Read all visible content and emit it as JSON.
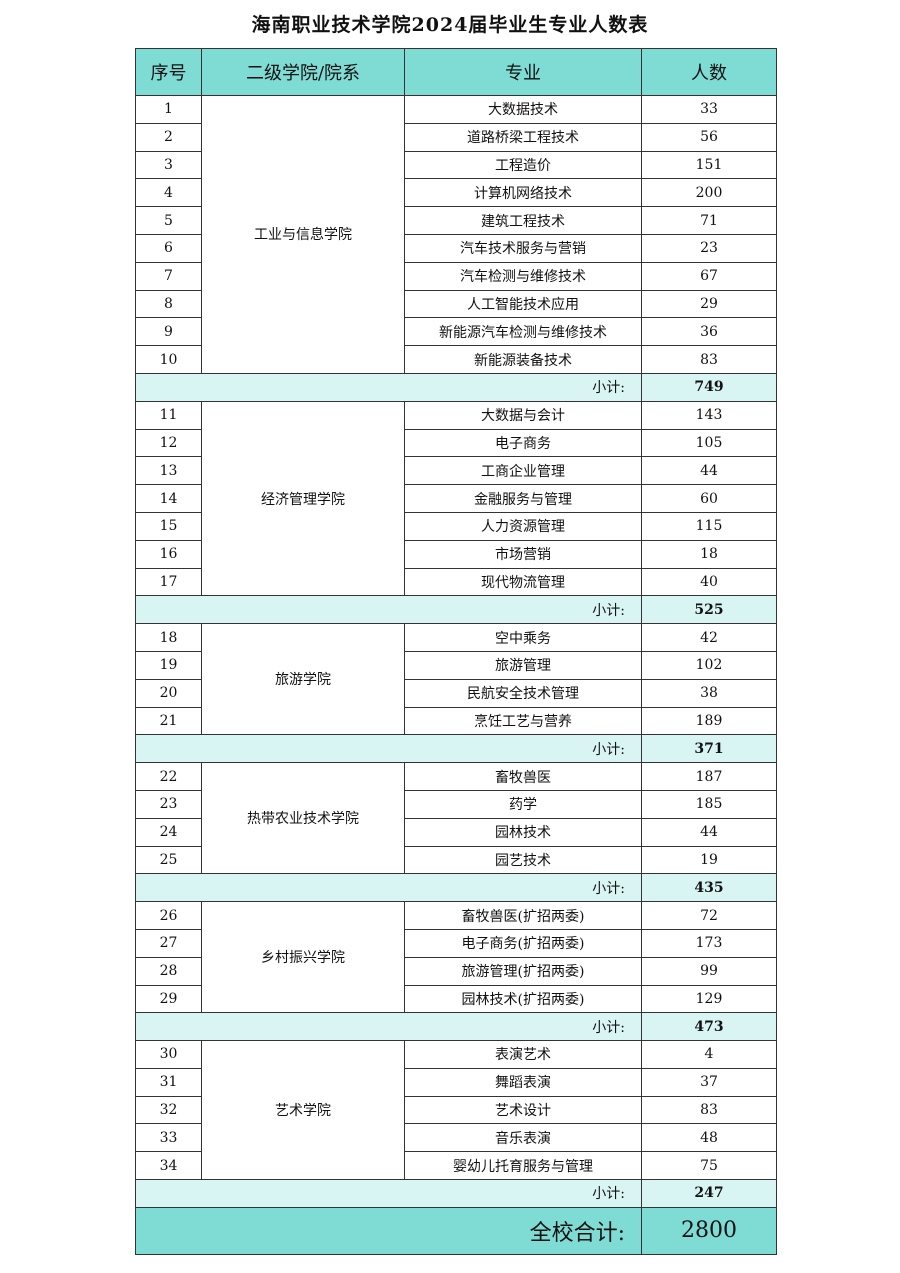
{
  "title": "海南职业技术学院2024届毕业生专业人数表",
  "headers": {
    "no": "序号",
    "college": "二级学院/院系",
    "major": "专业",
    "count": "人数"
  },
  "subtotal_label": "小计:",
  "total_label": "全校合计:",
  "total": "2800",
  "colors": {
    "header": "#7fdcd5",
    "subtotal": "#d9f5f3"
  },
  "groups": [
    {
      "college": "工业与信息学院",
      "subtotal": "749",
      "rows": [
        [
          "1",
          "大数据技术",
          "33"
        ],
        [
          "2",
          "道路桥梁工程技术",
          "56"
        ],
        [
          "3",
          "工程造价",
          "151"
        ],
        [
          "4",
          "计算机网络技术",
          "200"
        ],
        [
          "5",
          "建筑工程技术",
          "71"
        ],
        [
          "6",
          "汽车技术服务与营销",
          "23"
        ],
        [
          "7",
          "汽车检测与维修技术",
          "67"
        ],
        [
          "8",
          "人工智能技术应用",
          "29"
        ],
        [
          "9",
          "新能源汽车检测与维修技术",
          "36"
        ],
        [
          "10",
          "新能源装备技术",
          "83"
        ]
      ]
    },
    {
      "college": "经济管理学院",
      "subtotal": "525",
      "rows": [
        [
          "11",
          "大数据与会计",
          "143"
        ],
        [
          "12",
          "电子商务",
          "105"
        ],
        [
          "13",
          "工商企业管理",
          "44"
        ],
        [
          "14",
          "金融服务与管理",
          "60"
        ],
        [
          "15",
          "人力资源管理",
          "115"
        ],
        [
          "16",
          "市场营销",
          "18"
        ],
        [
          "17",
          "现代物流管理",
          "40"
        ]
      ]
    },
    {
      "college": "旅游学院",
      "subtotal": "371",
      "rows": [
        [
          "18",
          "空中乘务",
          "42"
        ],
        [
          "19",
          "旅游管理",
          "102"
        ],
        [
          "20",
          "民航安全技术管理",
          "38"
        ],
        [
          "21",
          "烹饪工艺与营养",
          "189"
        ]
      ]
    },
    {
      "college": "热带农业技术学院",
      "subtotal": "435",
      "rows": [
        [
          "22",
          "畜牧兽医",
          "187"
        ],
        [
          "23",
          "药学",
          "185"
        ],
        [
          "24",
          "园林技术",
          "44"
        ],
        [
          "25",
          "园艺技术",
          "19"
        ]
      ]
    },
    {
      "college": "乡村振兴学院",
      "subtotal": "473",
      "rows": [
        [
          "26",
          "畜牧兽医(扩招两委)",
          "72"
        ],
        [
          "27",
          "电子商务(扩招两委)",
          "173"
        ],
        [
          "28",
          "旅游管理(扩招两委)",
          "99"
        ],
        [
          "29",
          "园林技术(扩招两委)",
          "129"
        ]
      ]
    },
    {
      "college": "艺术学院",
      "subtotal": "247",
      "rows": [
        [
          "30",
          "表演艺术",
          "4"
        ],
        [
          "31",
          "舞蹈表演",
          "37"
        ],
        [
          "32",
          "艺术设计",
          "83"
        ],
        [
          "33",
          "音乐表演",
          "48"
        ],
        [
          "34",
          "婴幼儿托育服务与管理",
          "75"
        ]
      ]
    }
  ]
}
